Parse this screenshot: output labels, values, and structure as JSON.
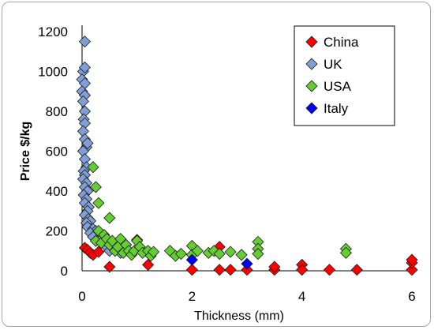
{
  "chart_data": {
    "type": "scatter",
    "title": "",
    "xlabel": "Thickness (mm)",
    "ylabel": "Price $/kg",
    "xlim": [
      0,
      6
    ],
    "ylim": [
      0,
      1200
    ],
    "xticks": [
      "0",
      "2",
      "4",
      "6"
    ],
    "yticks": [
      "0",
      "200",
      "400",
      "600",
      "800",
      "1000",
      "1200"
    ],
    "grid": false,
    "legend_position": "top-right",
    "series": [
      {
        "name": "China",
        "color": "#ff0000",
        "points": [
          [
            0.05,
            115
          ],
          [
            0.1,
            105
          ],
          [
            0.15,
            90
          ],
          [
            0.2,
            80
          ],
          [
            0.3,
            95
          ],
          [
            0.5,
            20
          ],
          [
            1.0,
            155
          ],
          [
            1.2,
            30
          ],
          [
            2.0,
            5
          ],
          [
            2.5,
            120
          ],
          [
            2.5,
            5
          ],
          [
            2.7,
            5
          ],
          [
            3.0,
            5
          ],
          [
            3.5,
            5
          ],
          [
            3.5,
            20
          ],
          [
            4.0,
            30
          ],
          [
            4.0,
            5
          ],
          [
            4.5,
            5
          ],
          [
            5.0,
            5
          ],
          [
            6.0,
            5
          ],
          [
            6.0,
            40
          ],
          [
            6.0,
            55
          ]
        ]
      },
      {
        "name": "UK",
        "color": "#7f9fd6",
        "points": [
          [
            0.05,
            1150
          ],
          [
            0.02,
            1000
          ],
          [
            0.05,
            1020
          ],
          [
            0.0,
            960
          ],
          [
            0.05,
            940
          ],
          [
            0.0,
            900
          ],
          [
            0.05,
            880
          ],
          [
            0.02,
            850
          ],
          [
            0.05,
            800
          ],
          [
            0.03,
            760
          ],
          [
            0.05,
            740
          ],
          [
            0.02,
            700
          ],
          [
            0.05,
            660
          ],
          [
            0.08,
            620
          ],
          [
            0.1,
            640
          ],
          [
            0.02,
            600
          ],
          [
            0.05,
            560
          ],
          [
            0.08,
            520
          ],
          [
            0.03,
            500
          ],
          [
            0.05,
            480
          ],
          [
            0.02,
            460
          ],
          [
            0.08,
            440
          ],
          [
            0.05,
            420
          ],
          [
            0.1,
            400
          ],
          [
            0.03,
            380
          ],
          [
            0.08,
            360
          ],
          [
            0.05,
            340
          ],
          [
            0.12,
            320
          ],
          [
            0.1,
            300
          ],
          [
            0.05,
            280
          ],
          [
            0.12,
            260
          ],
          [
            0.15,
            250
          ],
          [
            0.08,
            240
          ],
          [
            0.1,
            220
          ],
          [
            0.2,
            210
          ],
          [
            0.25,
            200
          ],
          [
            0.15,
            190
          ],
          [
            0.3,
            180
          ],
          [
            0.2,
            170
          ],
          [
            0.35,
            160
          ],
          [
            0.25,
            150
          ],
          [
            0.4,
            140
          ],
          [
            0.5,
            130
          ],
          [
            0.45,
            120
          ],
          [
            0.6,
            110
          ],
          [
            0.5,
            100
          ],
          [
            0.7,
            90
          ]
        ]
      },
      {
        "name": "USA",
        "color": "#66cc33",
        "points": [
          [
            0.2,
            520
          ],
          [
            0.25,
            420
          ],
          [
            0.3,
            340
          ],
          [
            0.5,
            265
          ],
          [
            0.3,
            200
          ],
          [
            0.25,
            150
          ],
          [
            0.35,
            140
          ],
          [
            0.4,
            180
          ],
          [
            0.45,
            160
          ],
          [
            0.5,
            130
          ],
          [
            0.55,
            150
          ],
          [
            0.6,
            100
          ],
          [
            0.65,
            120
          ],
          [
            0.7,
            160
          ],
          [
            0.75,
            90
          ],
          [
            0.8,
            130
          ],
          [
            0.85,
            100
          ],
          [
            0.9,
            80
          ],
          [
            0.95,
            100
          ],
          [
            1.0,
            150
          ],
          [
            1.05,
            120
          ],
          [
            1.1,
            90
          ],
          [
            1.2,
            100
          ],
          [
            1.25,
            75
          ],
          [
            1.3,
            95
          ],
          [
            1.6,
            100
          ],
          [
            1.7,
            75
          ],
          [
            1.8,
            85
          ],
          [
            2.0,
            125
          ],
          [
            2.0,
            80
          ],
          [
            2.1,
            100
          ],
          [
            2.3,
            90
          ],
          [
            2.4,
            100
          ],
          [
            2.5,
            85
          ],
          [
            2.7,
            95
          ],
          [
            2.9,
            80
          ],
          [
            3.2,
            145
          ],
          [
            3.2,
            110
          ],
          [
            3.2,
            85
          ],
          [
            4.8,
            110
          ],
          [
            4.8,
            90
          ]
        ]
      },
      {
        "name": "Italy",
        "color": "#0000ff",
        "points": [
          [
            2.0,
            55
          ],
          [
            3.0,
            35
          ]
        ]
      }
    ]
  }
}
